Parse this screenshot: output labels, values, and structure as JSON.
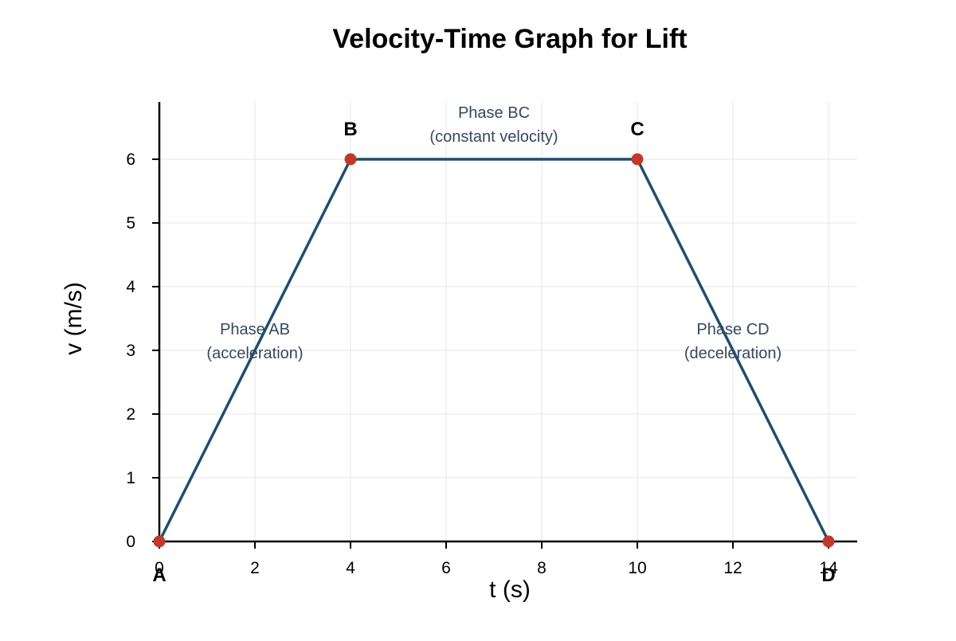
{
  "chart_data": {
    "type": "line",
    "title": "Velocity-Time Graph for Lift",
    "xlabel": "t (s)",
    "ylabel": "v (m/s)",
    "xlim": [
      0,
      14.6
    ],
    "ylim": [
      0,
      6.9
    ],
    "xticks": [
      0,
      2,
      4,
      6,
      8,
      10,
      12,
      14
    ],
    "yticks": [
      0,
      1,
      2,
      3,
      4,
      5,
      6
    ],
    "grid": true,
    "series": [
      {
        "x": [
          0,
          4,
          10,
          14
        ],
        "y": [
          0,
          6,
          6,
          0
        ],
        "color": "#1f4e6e",
        "marker_color": "#c0392b"
      }
    ],
    "points": [
      {
        "label": "A",
        "x": 0,
        "y": 0
      },
      {
        "label": "B",
        "x": 4,
        "y": 6
      },
      {
        "label": "C",
        "x": 10,
        "y": 6
      },
      {
        "label": "D",
        "x": 14,
        "y": 0
      }
    ],
    "annotations": [
      {
        "lines": [
          "Phase AB",
          "(acceleration)"
        ],
        "x": 2,
        "y": 3.0
      },
      {
        "lines": [
          "Phase BC",
          "(constant velocity)"
        ],
        "x": 7,
        "y": 6.4
      },
      {
        "lines": [
          "Phase CD",
          "(deceleration)"
        ],
        "x": 12,
        "y": 3.0
      }
    ]
  }
}
